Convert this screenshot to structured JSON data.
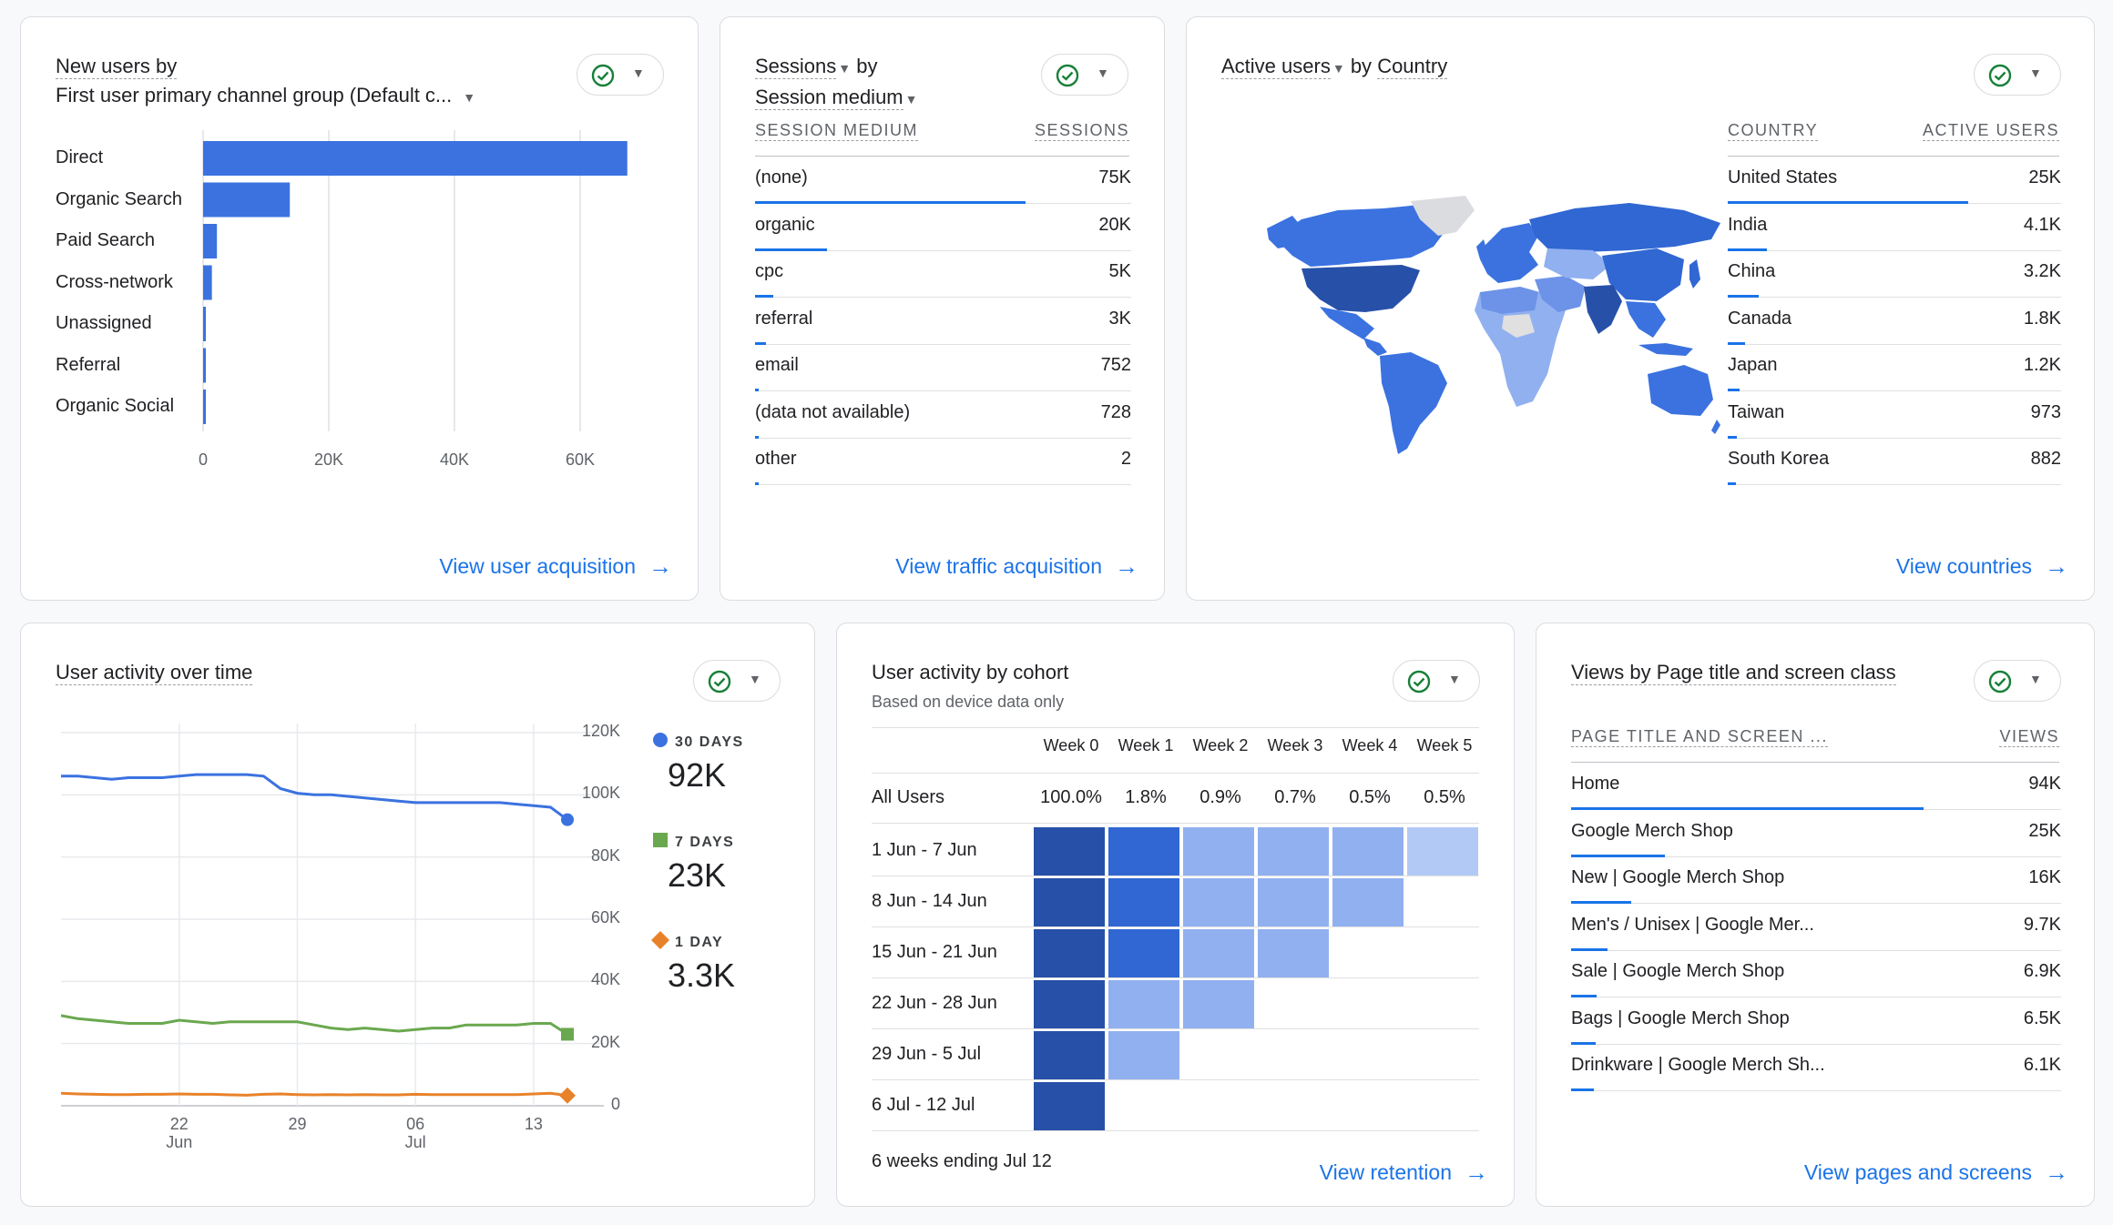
{
  "colors": {
    "accent": "#1a73e8",
    "bar": "#3b72e0",
    "green": "#188038",
    "line_blue": "#3b72e0",
    "line_green": "#6aa84f",
    "line_orange": "#e8822a"
  },
  "card1": {
    "title_line1": "New users by",
    "title_line2": "First user primary channel group (Default c...",
    "link": "View user acquisition",
    "categories": [
      "Direct",
      "Organic Search",
      "Paid Search",
      "Cross-network",
      "Unassigned",
      "Referral",
      "Organic Social"
    ],
    "x_ticks": [
      "0",
      "20K",
      "40K",
      "60K"
    ]
  },
  "card2": {
    "title_a": "Sessions",
    "title_b": "by",
    "title_c": "Session medium",
    "col1": "SESSION MEDIUM",
    "col2": "SESSIONS",
    "rows": [
      {
        "label": "(none)",
        "value": "75K",
        "frac": 1.0
      },
      {
        "label": "organic",
        "value": "20K",
        "frac": 0.267
      },
      {
        "label": "cpc",
        "value": "5K",
        "frac": 0.067
      },
      {
        "label": "referral",
        "value": "3K",
        "frac": 0.04
      },
      {
        "label": "email",
        "value": "752",
        "frac": 0.01
      },
      {
        "label": "(data not available)",
        "value": "728",
        "frac": 0.01
      },
      {
        "label": "other",
        "value": "2",
        "frac": 0.0
      }
    ],
    "link": "View traffic acquisition"
  },
  "card3": {
    "title_a": "Active users",
    "title_b": "by",
    "title_c": "Country",
    "col1": "COUNTRY",
    "col2": "ACTIVE USERS",
    "rows": [
      {
        "label": "United States",
        "value": "25K",
        "frac": 1.0
      },
      {
        "label": "India",
        "value": "4.1K",
        "frac": 0.164
      },
      {
        "label": "China",
        "value": "3.2K",
        "frac": 0.128
      },
      {
        "label": "Canada",
        "value": "1.8K",
        "frac": 0.072
      },
      {
        "label": "Japan",
        "value": "1.2K",
        "frac": 0.048
      },
      {
        "label": "Taiwan",
        "value": "973",
        "frac": 0.039
      },
      {
        "label": "South Korea",
        "value": "882",
        "frac": 0.035
      }
    ],
    "link": "View countries",
    "map_icon": "world-map"
  },
  "card4": {
    "title": "User activity over time",
    "y_ticks": [
      "120K",
      "100K",
      "80K",
      "60K",
      "40K",
      "20K",
      "0"
    ],
    "x_ticks": [
      {
        "d": "22",
        "m": "Jun"
      },
      {
        "d": "29",
        "m": ""
      },
      {
        "d": "06",
        "m": "Jul"
      },
      {
        "d": "13",
        "m": ""
      }
    ],
    "legend": [
      {
        "label": "30 DAYS",
        "value": "92K"
      },
      {
        "label": "7 DAYS",
        "value": "23K"
      },
      {
        "label": "1 DAY",
        "value": "3.3K"
      }
    ]
  },
  "card5": {
    "title": "User activity by cohort",
    "subtitle": "Based on device data only",
    "weeks": [
      "Week 0",
      "Week 1",
      "Week 2",
      "Week 3",
      "Week 4",
      "Week 5"
    ],
    "all_users_label": "All Users",
    "all_users": [
      "100.0%",
      "1.8%",
      "0.9%",
      "0.7%",
      "0.5%",
      "0.5%"
    ],
    "cohorts": [
      "1 Jun - 7 Jun",
      "8 Jun - 14 Jun",
      "15 Jun - 21 Jun",
      "22 Jun - 28 Jun",
      "29 Jun - 5 Jul",
      "6 Jul - 12 Jul"
    ],
    "footer": "6 weeks ending Jul 12",
    "link": "View retention"
  },
  "card6": {
    "title": "Views by Page title and screen class",
    "col1": "PAGE TITLE AND SCREEN ...",
    "col2": "VIEWS",
    "rows": [
      {
        "label": "Home",
        "value": "94K",
        "frac": 1.0
      },
      {
        "label": "Google Merch Shop",
        "value": "25K",
        "frac": 0.266
      },
      {
        "label": "New | Google Merch Shop",
        "value": "16K",
        "frac": 0.17
      },
      {
        "label": "Men's / Unisex | Google Mer...",
        "value": "9.7K",
        "frac": 0.103
      },
      {
        "label": "Sale | Google Merch Shop",
        "value": "6.9K",
        "frac": 0.073
      },
      {
        "label": "Bags | Google Merch Shop",
        "value": "6.5K",
        "frac": 0.069
      },
      {
        "label": "Drinkware | Google Merch Sh...",
        "value": "6.1K",
        "frac": 0.065
      }
    ],
    "link": "View pages and screens"
  },
  "chart_data": [
    {
      "type": "bar",
      "title": "New users by First user primary channel group (Default c...",
      "categories": [
        "Direct",
        "Organic Search",
        "Paid Search",
        "Cross-network",
        "Unassigned",
        "Referral",
        "Organic Social"
      ],
      "values": [
        67500,
        13800,
        2200,
        1400,
        400,
        350,
        300
      ],
      "xlim": [
        0,
        70000
      ],
      "x_ticks": [
        "0",
        "20K",
        "40K",
        "60K"
      ],
      "grid": true
    },
    {
      "type": "line",
      "title": "User activity over time",
      "x": [
        "Jun 15",
        "Jun 16",
        "Jun 17",
        "Jun 18",
        "Jun 19",
        "Jun 20",
        "Jun 21",
        "Jun 22",
        "Jun 23",
        "Jun 24",
        "Jun 25",
        "Jun 26",
        "Jun 27",
        "Jun 28",
        "Jun 29",
        "Jun 30",
        "Jul 1",
        "Jul 2",
        "Jul 3",
        "Jul 4",
        "Jul 5",
        "Jul 6",
        "Jul 7",
        "Jul 8",
        "Jul 9",
        "Jul 10",
        "Jul 11",
        "Jul 12",
        "Jul 13",
        "Jul 14",
        "Jul 15"
      ],
      "series": [
        {
          "name": "30 DAYS",
          "values": [
            106000,
            106000,
            105500,
            105000,
            105500,
            105500,
            105500,
            106000,
            106500,
            106500,
            106500,
            106500,
            106000,
            102000,
            100500,
            100000,
            100000,
            99500,
            99000,
            98500,
            98000,
            97500,
            97500,
            97500,
            97500,
            97500,
            97500,
            97000,
            96500,
            96000,
            92000
          ]
        },
        {
          "name": "7 DAYS",
          "values": [
            29000,
            28000,
            27500,
            27000,
            26500,
            26500,
            26500,
            27500,
            27000,
            26500,
            27000,
            27000,
            27000,
            27000,
            27000,
            26000,
            25000,
            24500,
            25000,
            24500,
            24000,
            24500,
            25000,
            25000,
            26000,
            26000,
            26000,
            26000,
            26500,
            26500,
            23000
          ]
        },
        {
          "name": "1 DAY",
          "values": [
            4000,
            3800,
            3700,
            3600,
            3600,
            3700,
            3700,
            3800,
            3700,
            3700,
            3500,
            3400,
            3700,
            3800,
            3600,
            3500,
            3600,
            3500,
            3600,
            3500,
            3500,
            3700,
            3600,
            3600,
            3600,
            3600,
            3600,
            3600,
            3800,
            4000,
            3300
          ]
        }
      ],
      "ylim": [
        0,
        120000
      ],
      "y_ticks": [
        "120K",
        "100K",
        "80K",
        "60K",
        "40K",
        "20K",
        "0"
      ],
      "x_ticks": [
        "22 Jun",
        "29",
        "06 Jul",
        "13"
      ],
      "grid": true
    },
    {
      "type": "heatmap",
      "title": "User activity by cohort",
      "columns": [
        "Week 0",
        "Week 1",
        "Week 2",
        "Week 3",
        "Week 4",
        "Week 5"
      ],
      "rows": [
        "1 Jun - 7 Jun",
        "8 Jun - 14 Jun",
        "15 Jun - 21 Jun",
        "22 Jun - 28 Jun",
        "29 Jun - 5 Jul",
        "6 Jul - 12 Jul"
      ],
      "levels": [
        [
          4,
          3,
          1,
          1,
          1,
          0
        ],
        [
          4,
          3,
          1,
          1,
          1
        ],
        [
          4,
          3,
          1,
          1
        ],
        [
          4,
          1,
          1
        ],
        [
          4,
          1
        ],
        [
          4
        ]
      ],
      "colors": [
        "#b3c9f5",
        "#91b0f0",
        "#6d93e8",
        "#3067d3",
        "#2750a8"
      ]
    }
  ]
}
